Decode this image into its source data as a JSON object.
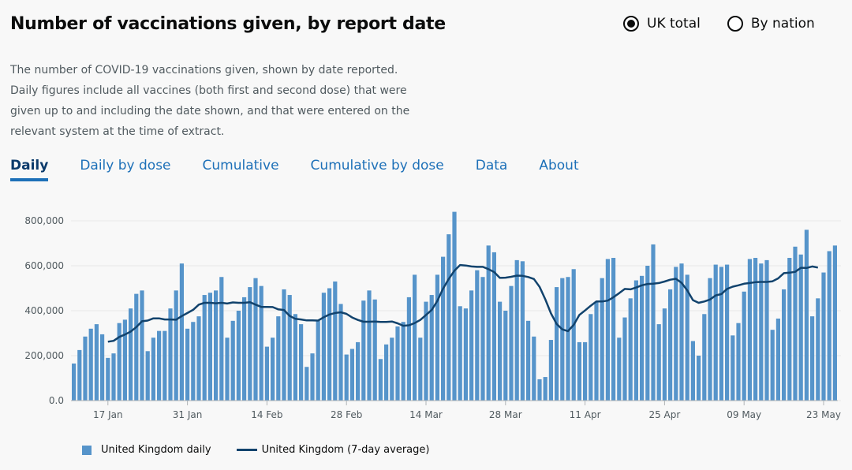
{
  "header": {
    "title": "Number of vaccinations given, by report date",
    "radios": [
      {
        "label": "UK total",
        "checked": true
      },
      {
        "label": "By nation",
        "checked": false
      }
    ]
  },
  "description": "The number of COVID-19 vaccinations given, shown by date reported. Daily figures include all vaccines (both first and second dose) that were given up to and including the date shown, and that were entered on the relevant system at the time of extract.",
  "tabs": [
    {
      "label": "Daily",
      "active": true
    },
    {
      "label": "Daily by dose",
      "active": false
    },
    {
      "label": "Cumulative",
      "active": false
    },
    {
      "label": "Cumulative by dose",
      "active": false
    },
    {
      "label": "Data",
      "active": false
    },
    {
      "label": "About",
      "active": false
    }
  ],
  "legend": {
    "daily": "United Kingdom daily",
    "average": "United Kingdom (7-day average)"
  },
  "colors": {
    "bar": "#5694ca",
    "line": "#12436d",
    "active_tab": "#1d70b8"
  },
  "chart_data": {
    "type": "bar",
    "x_start": "2021-01-11",
    "x_end": "2021-05-27",
    "xticks": [
      "17 Jan",
      "31 Jan",
      "14 Feb",
      "28 Feb",
      "14 Mar",
      "28 Mar",
      "11 Apr",
      "25 Apr",
      "09 May",
      "23 May"
    ],
    "yticks": [
      "0.0",
      "200,000",
      "400,000",
      "600,000",
      "800,000"
    ],
    "ylim": [
      0,
      800000
    ],
    "grid": true,
    "legend_position": "bottom-left",
    "series": [
      {
        "name": "United Kingdom daily",
        "type": "bar",
        "values": [
          165000,
          225000,
          285000,
          320000,
          340000,
          295000,
          190000,
          210000,
          345000,
          360000,
          410000,
          475000,
          490000,
          220000,
          280000,
          310000,
          310000,
          410000,
          490000,
          610000,
          320000,
          350000,
          375000,
          470000,
          480000,
          490000,
          550000,
          280000,
          355000,
          400000,
          460000,
          505000,
          545000,
          510000,
          240000,
          280000,
          375000,
          495000,
          470000,
          385000,
          340000,
          150000,
          210000,
          355000,
          480000,
          500000,
          530000,
          430000,
          205000,
          230000,
          260000,
          445000,
          490000,
          450000,
          185000,
          250000,
          280000,
          330000,
          350000,
          460000,
          560000,
          280000,
          440000,
          470000,
          560000,
          640000,
          740000,
          840000,
          420000,
          410000,
          490000,
          580000,
          550000,
          690000,
          660000,
          440000,
          400000,
          510000,
          625000,
          620000,
          355000,
          285000,
          95000,
          105000,
          270000,
          505000,
          545000,
          550000,
          585000,
          260000,
          260000,
          385000,
          440000,
          545000,
          630000,
          635000,
          280000,
          370000,
          455000,
          535000,
          555000,
          600000,
          695000,
          340000,
          410000,
          495000,
          595000,
          610000,
          560000,
          265000,
          200000,
          385000,
          545000,
          605000,
          595000,
          605000,
          290000,
          345000,
          485000,
          630000,
          635000,
          610000,
          625000,
          315000,
          365000,
          495000,
          635000,
          685000,
          650000,
          760000,
          375000,
          455000,
          570000,
          665000,
          690000
        ]
      },
      {
        "name": "United Kingdom (7-day average)",
        "type": "line",
        "values": [
          null,
          null,
          null,
          null,
          null,
          null,
          262000,
          266000,
          283000,
          294000,
          307000,
          327000,
          353000,
          356000,
          366000,
          366000,
          361000,
          361000,
          360000,
          376000,
          390000,
          404000,
          427000,
          435000,
          435000,
          433000,
          435000,
          432000,
          437000,
          435000,
          435000,
          438000,
          427000,
          417000,
          417000,
          416000,
          406000,
          403000,
          377000,
          364000,
          361000,
          357000,
          357000,
          356000,
          371000,
          383000,
          390000,
          393000,
          386000,
          370000,
          359000,
          351000,
          351000,
          352000,
          350000,
          350000,
          352000,
          344000,
          333000,
          335000,
          345000,
          359000,
          381000,
          403000,
          444000,
          498000,
          541000,
          578000,
          603000,
          601000,
          597000,
          595000,
          595000,
          585000,
          572000,
          546000,
          547000,
          551000,
          556000,
          555000,
          550000,
          541000,
          506000,
          451000,
          388000,
          341000,
          317000,
          309000,
          337000,
          381000,
          401000,
          422000,
          441000,
          441000,
          445000,
          460000,
          478000,
          497000,
          495000,
          503000,
          513000,
          519000,
          520000,
          523000,
          530000,
          538000,
          542000,
          524000,
          490000,
          447000,
          435000,
          441000,
          450000,
          468000,
          474000,
          497000,
          507000,
          513000,
          520000,
          523000,
          527000,
          528000,
          528000,
          531000,
          544000,
          567000,
          569000,
          573000,
          591000,
          590000,
          597000,
          592000
        ]
      }
    ]
  }
}
